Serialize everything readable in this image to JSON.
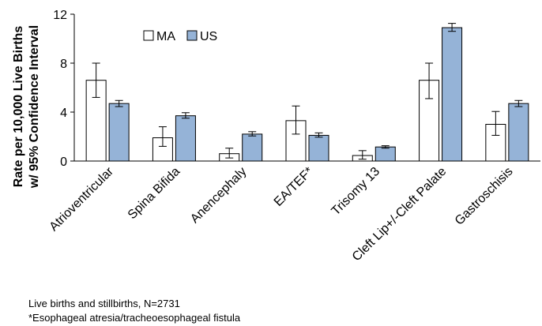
{
  "chart_data": {
    "type": "bar",
    "ylabel_line1": "Rate per 10,000 Live Births",
    "ylabel_line2": "w/ 95% Confidence Interval",
    "ylim": [
      0,
      12
    ],
    "yticks": [
      0,
      4,
      8,
      12
    ],
    "grid": false,
    "legend_position": "top-left",
    "categories": [
      "Atrioventricular",
      "Spina Bifida",
      "Anencephaly",
      "EA/TEF*",
      "Trisomy 13",
      "Cleft Lip+/-Cleft Palate",
      "Gastroschisis"
    ],
    "series": [
      {
        "name": "MA",
        "color": "#ffffff",
        "values": [
          6.6,
          1.9,
          0.6,
          3.3,
          0.45,
          6.6,
          3.0
        ],
        "ci_low": [
          5.2,
          1.2,
          0.25,
          2.2,
          0.15,
          5.1,
          2.1
        ],
        "ci_high": [
          8.0,
          2.8,
          1.05,
          4.5,
          0.85,
          8.0,
          4.05
        ]
      },
      {
        "name": "US",
        "color": "#95b3d7",
        "values": [
          4.7,
          3.7,
          2.2,
          2.1,
          1.15,
          10.9,
          4.7
        ],
        "ci_low": [
          4.45,
          3.5,
          2.05,
          1.95,
          1.05,
          10.6,
          4.45
        ],
        "ci_high": [
          4.95,
          3.95,
          2.4,
          2.3,
          1.25,
          11.25,
          4.95
        ]
      }
    ]
  },
  "footnotes": {
    "line1": "Live births and stillbirths, N=2731",
    "line2": "*Esophageal atresia/tracheoesophageal fistula"
  }
}
